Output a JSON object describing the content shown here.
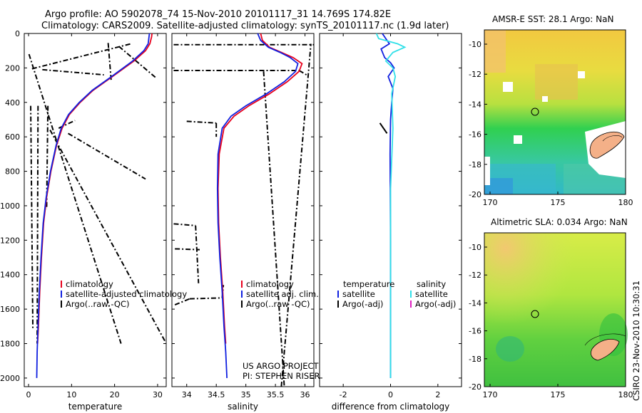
{
  "header": {
    "line1": "Argo profile: AO 5902078_74 15-Nov-2010 20101117_31 14.769S 174.82E",
    "line2": "Climatology: CARS2009. Satellite-adjusted climatology: synTS_20101117.nc (1.9d later)"
  },
  "credit": {
    "project": "US ARGO PROJECT",
    "pi": "PI: STEPHEN RISER",
    "stamp": "CSIRO 23-Nov-2010 10:30:31"
  },
  "colors": {
    "climatology": "#e8001c",
    "satellite": "#1020e0",
    "argo": "#000000",
    "sat_salinity": "#30e0e8",
    "argo_adj_salinity": "#e020c0"
  },
  "chart_data": [
    {
      "type": "line",
      "id": "temperature-profile",
      "xlabel": "temperature",
      "ylabel": "",
      "xlim": [
        -1,
        32
      ],
      "ylim": [
        2050,
        0
      ],
      "xticks": [
        0,
        10,
        20,
        30
      ],
      "yticks": [
        0,
        200,
        400,
        600,
        800,
        1000,
        1200,
        1400,
        1600,
        1800,
        2000
      ],
      "legend": [
        "climatology",
        "satellite-adjusted climatology",
        "Argo(..raw -QC)"
      ],
      "series": [
        {
          "name": "climatology",
          "color_key": "climatology",
          "x": [
            28.7,
            28.6,
            28.2,
            27.2,
            24.5,
            19.5,
            15.0,
            12.0,
            9.5,
            7.8,
            6.5,
            5.2,
            4.2,
            3.5,
            3.0,
            2.6,
            2.3,
            2.1
          ],
          "y": [
            0,
            20,
            60,
            100,
            160,
            250,
            330,
            400,
            470,
            550,
            650,
            800,
            950,
            1100,
            1300,
            1500,
            1700,
            1800
          ]
        },
        {
          "name": "satellite",
          "color_key": "satellite",
          "x": [
            28.1,
            28.0,
            27.8,
            26.8,
            24.2,
            19.3,
            14.8,
            11.8,
            9.3,
            7.6,
            6.4,
            5.1,
            4.1,
            3.4,
            2.9,
            2.5,
            2.2,
            2.0,
            1.9
          ],
          "y": [
            0,
            20,
            60,
            100,
            160,
            250,
            330,
            400,
            470,
            550,
            650,
            800,
            950,
            1100,
            1300,
            1500,
            1700,
            1850,
            2000
          ]
        }
      ],
      "argo_segments": [
        {
          "x": [
            0.1,
            21.5
          ],
          "y": [
            120,
            1800
          ]
        },
        {
          "x": [
            0.8,
            23.8
          ],
          "y": [
            205,
            60
          ]
        },
        {
          "x": [
            21.0,
            29.5
          ],
          "y": [
            75,
            255
          ]
        },
        {
          "x": [
            3.2,
            17.5
          ],
          "y": [
            210,
            240
          ]
        },
        {
          "x": [
            9.2,
            27.2
          ],
          "y": [
            580,
            845
          ]
        },
        {
          "x": [
            7.0,
            10.8
          ],
          "y": [
            550,
            505
          ]
        },
        {
          "x": [
            5.0,
            31.8
          ],
          "y": [
            560,
            1790
          ]
        },
        {
          "x": [
            0.5,
            1.0
          ],
          "y": [
            420,
            1720
          ]
        },
        {
          "x": [
            2.2,
            2.0
          ],
          "y": [
            420,
            1800
          ]
        },
        {
          "x": [
            4.5,
            4.2
          ],
          "y": [
            420,
            1020
          ]
        },
        {
          "x": [
            18.5,
            19.2
          ],
          "y": [
            55,
            270
          ]
        }
      ]
    },
    {
      "type": "line",
      "id": "salinity-profile",
      "xlabel": "salinity",
      "ylabel": "",
      "xlim": [
        33.75,
        36.15
      ],
      "ylim": [
        2050,
        0
      ],
      "xticks": [
        34,
        34.5,
        35,
        35.5,
        36
      ],
      "legend": [
        "climatology",
        "satellite adj. clim.",
        "Argo(..raw -QC)"
      ],
      "series": [
        {
          "name": "climatology",
          "color_key": "climatology",
          "x": [
            35.25,
            35.28,
            35.4,
            35.6,
            35.8,
            35.95,
            35.9,
            35.7,
            35.4,
            35.05,
            34.8,
            34.63,
            34.55,
            34.53,
            34.54,
            34.57,
            34.61,
            34.64,
            34.66
          ],
          "y": [
            0,
            40,
            80,
            110,
            140,
            175,
            220,
            280,
            350,
            420,
            480,
            550,
            700,
            900,
            1100,
            1300,
            1500,
            1700,
            1800
          ]
        },
        {
          "name": "satellite",
          "color_key": "satellite",
          "x": [
            35.2,
            35.25,
            35.38,
            35.58,
            35.75,
            35.88,
            35.84,
            35.65,
            35.35,
            35.0,
            34.75,
            34.6,
            34.53,
            34.52,
            34.53,
            34.56,
            34.6,
            34.63,
            34.66,
            34.68
          ],
          "y": [
            0,
            40,
            80,
            110,
            140,
            175,
            220,
            280,
            350,
            420,
            480,
            550,
            700,
            900,
            1100,
            1300,
            1500,
            1700,
            1850,
            2000
          ]
        }
      ],
      "argo_segments": [
        {
          "x": [
            33.78,
            36.15
          ],
          "y": [
            65,
            65
          ]
        },
        {
          "x": [
            33.78,
            35.9
          ],
          "y": [
            215,
            215
          ]
        },
        {
          "x": [
            35.9,
            36.05
          ],
          "y": [
            215,
            245
          ]
        },
        {
          "x": [
            34.0,
            34.5
          ],
          "y": [
            510,
            520
          ]
        },
        {
          "x": [
            34.5,
            34.5
          ],
          "y": [
            520,
            600
          ]
        },
        {
          "x": [
            33.78,
            34.15
          ],
          "y": [
            1105,
            1115
          ]
        },
        {
          "x": [
            34.15,
            34.2
          ],
          "y": [
            1115,
            1450
          ]
        },
        {
          "x": [
            33.8,
            34.22
          ],
          "y": [
            1250,
            1255
          ]
        },
        {
          "x": [
            33.8,
            34.05
          ],
          "y": [
            1575,
            1540
          ]
        },
        {
          "x": [
            34.05,
            34.6
          ],
          "y": [
            1540,
            1535
          ]
        },
        {
          "x": [
            34.6,
            34.62
          ],
          "y": [
            1535,
            1460
          ]
        },
        {
          "x": [
            35.6,
            36.1
          ],
          "y": [
            2050,
            60
          ]
        },
        {
          "x": [
            35.3,
            35.65
          ],
          "y": [
            220,
            2050
          ]
        }
      ]
    },
    {
      "type": "line",
      "id": "difference-profile",
      "xlabel": "difference from climatology",
      "ylabel": "",
      "xlim": [
        -3,
        3
      ],
      "ylim": [
        2050,
        0
      ],
      "xticks": [
        -2,
        0,
        2
      ],
      "legend_temperature_title": "temperature",
      "legend_salinity_title": "salinity",
      "legend": [
        "satellite",
        "Argo(-adj)",
        "satellite",
        "Argo(-adj)"
      ],
      "series": [
        {
          "name": "temperature satellite",
          "color_key": "satellite",
          "x": [
            -0.35,
            -0.2,
            -0.05,
            -0.4,
            -0.25,
            0.0,
            0.15,
            -0.1,
            0.1,
            0.05,
            0.0,
            -0.02,
            0.0,
            0.0
          ],
          "y": [
            0,
            30,
            60,
            90,
            140,
            170,
            200,
            250,
            320,
            400,
            500,
            700,
            1200,
            2000
          ]
        },
        {
          "name": "salinity satellite",
          "color_key": "sat_salinity",
          "x": [
            -0.6,
            -0.5,
            0.3,
            0.6,
            0.1,
            -0.2,
            0.1,
            0.2,
            0.05,
            0.1,
            0.0,
            0.0
          ],
          "y": [
            0,
            30,
            60,
            80,
            110,
            160,
            200,
            250,
            350,
            550,
            900,
            2000
          ]
        },
        {
          "name": "Argo adjusted",
          "color_key": "argo",
          "x": [
            -0.45,
            -0.15
          ],
          "y": [
            520,
            580
          ]
        }
      ]
    }
  ],
  "maps": [
    {
      "title": "AMSR-E SST: 28.1 Argo: NaN",
      "xticks": [
        "170",
        "175",
        "180"
      ],
      "yticks": [
        "-10",
        "-12",
        "-14",
        "-16",
        "-18",
        "-20"
      ]
    },
    {
      "title": "Altimetric SLA: 0.034 Argo: NaN",
      "xticks": [
        "170",
        "175",
        "180"
      ],
      "yticks": [
        "-10",
        "-12",
        "-14",
        "-16",
        "-18",
        "-20"
      ]
    }
  ]
}
